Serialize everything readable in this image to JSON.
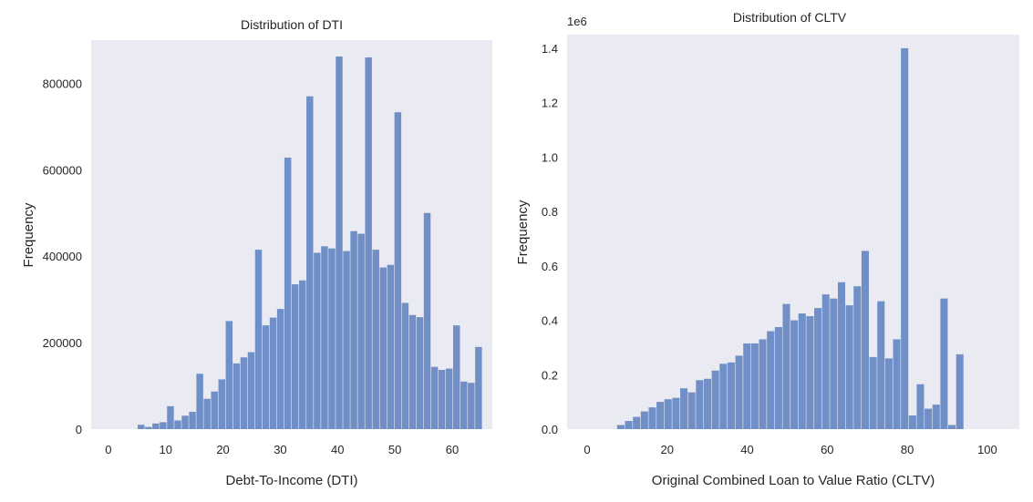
{
  "chart_data": [
    {
      "type": "bar",
      "title": "Distribution of DTI",
      "xlabel": "Debt-To-Income (DTI)",
      "ylabel": "Frequency",
      "xlim": [
        -3,
        67
      ],
      "ylim": [
        0,
        900000
      ],
      "xticks": [
        0,
        10,
        20,
        30,
        40,
        50,
        60
      ],
      "xtick_labels": [
        "0",
        "10",
        "20",
        "30",
        "40",
        "50",
        "60"
      ],
      "yticks": [
        0,
        200000,
        400000,
        600000,
        800000
      ],
      "ytick_labels": [
        "0",
        "200000",
        "400000",
        "600000",
        "800000"
      ],
      "y_offset_label": "",
      "grid": false,
      "bar_color": "#6f8fc6",
      "bin_start": 0,
      "bin_width": 1.28,
      "values": [
        0,
        0,
        0,
        0,
        10000,
        5000,
        13000,
        16000,
        53000,
        20000,
        31000,
        40000,
        128000,
        70000,
        87000,
        115000,
        250000,
        152000,
        166000,
        178000,
        415000,
        240000,
        258000,
        278000,
        628000,
        335000,
        344000,
        770000,
        408000,
        423000,
        418000,
        862000,
        412000,
        458000,
        452000,
        860000,
        415000,
        374000,
        380000,
        733000,
        292000,
        264000,
        259000,
        500000,
        144000,
        137000,
        140000,
        240000,
        110000,
        107000,
        190000
      ]
    },
    {
      "type": "bar",
      "title": "Distribution of CLTV",
      "xlabel": "Original Combined Loan to Value Ratio (CLTV)",
      "ylabel": "Frequency",
      "xlim": [
        -5,
        108
      ],
      "ylim": [
        0,
        1.45
      ],
      "xticks": [
        0,
        20,
        40,
        60,
        80,
        100
      ],
      "xtick_labels": [
        "0",
        "20",
        "40",
        "60",
        "80",
        "100"
      ],
      "yticks": [
        0,
        0.2,
        0.4,
        0.6,
        0.8,
        1.0,
        1.2,
        1.4
      ],
      "ytick_labels": [
        "0.0",
        "0.2",
        "0.4",
        "0.6",
        "0.8",
        "1.0",
        "1.2",
        "1.4"
      ],
      "y_offset_label": "1e6",
      "grid": false,
      "bar_color": "#6f8fc6",
      "bin_start": 7.5,
      "bin_width": 1.97,
      "values": [
        0.015,
        0.03,
        0.045,
        0.065,
        0.08,
        0.1,
        0.11,
        0.115,
        0.15,
        0.135,
        0.18,
        0.185,
        0.215,
        0.24,
        0.245,
        0.27,
        0.315,
        0.315,
        0.33,
        0.36,
        0.375,
        0.46,
        0.4,
        0.425,
        0.415,
        0.445,
        0.495,
        0.48,
        0.54,
        0.455,
        0.525,
        0.655,
        0.265,
        0.47,
        0.26,
        0.33,
        1.4,
        0.05,
        0.165,
        0.075,
        0.09,
        0.48,
        0.015,
        0.275
      ]
    }
  ]
}
